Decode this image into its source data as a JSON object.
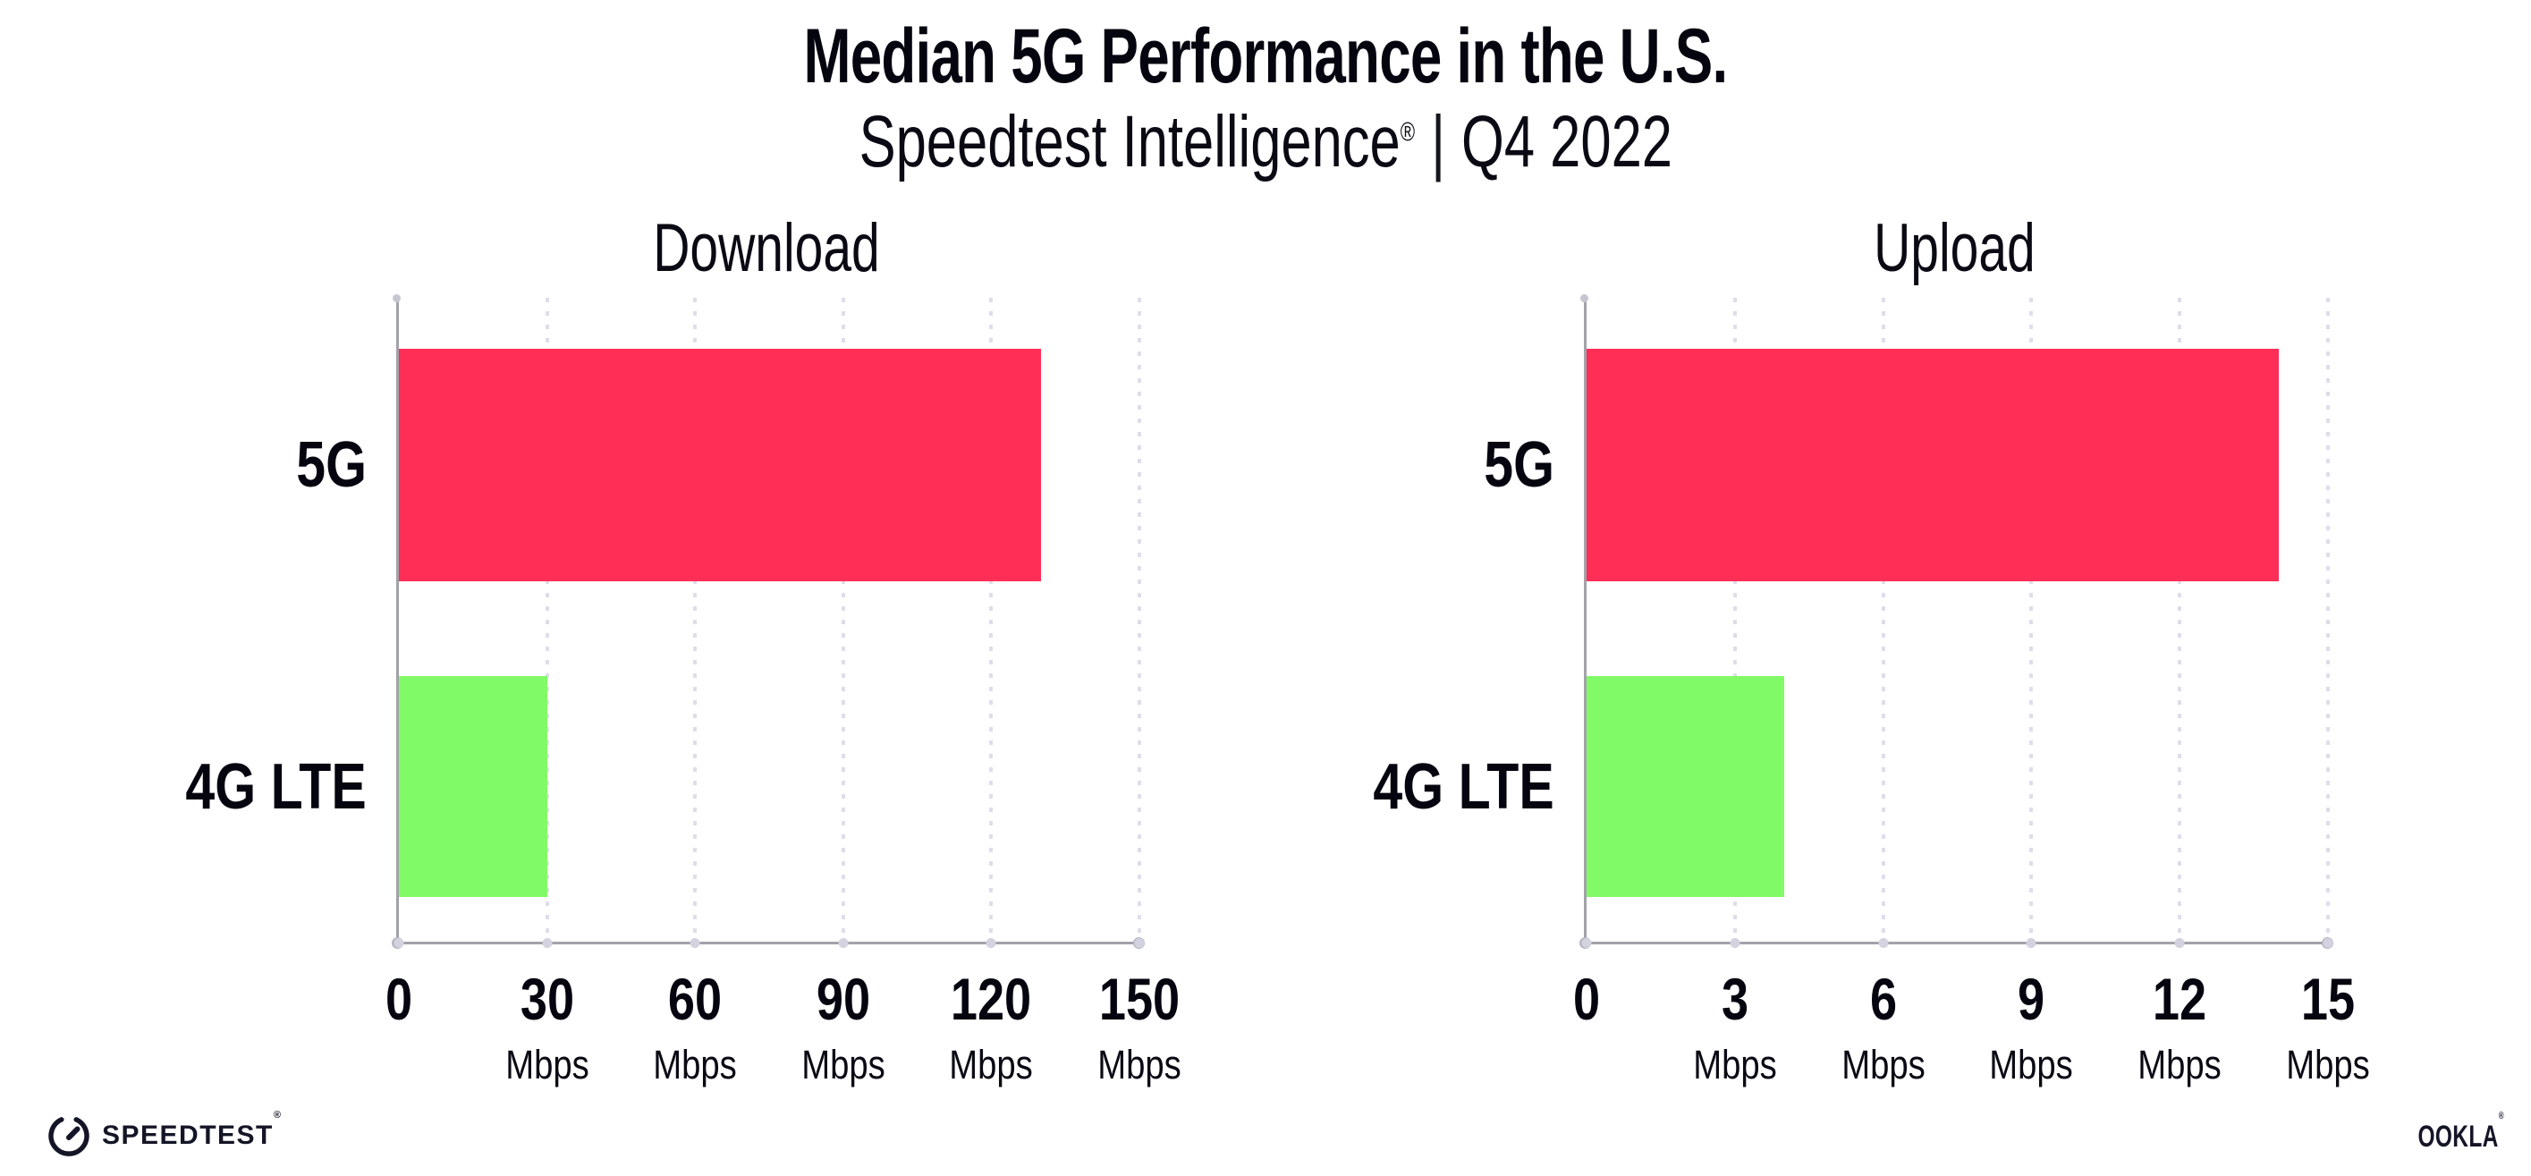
{
  "header": {
    "title": "Median 5G Performance in the U.S.",
    "subtitle": {
      "brand": "Speedtest Intelligence",
      "registered": "®",
      "separator": "|",
      "period": "Q4 2022"
    }
  },
  "chart_data": [
    {
      "type": "bar",
      "orientation": "horizontal",
      "title": "Download",
      "categories": [
        "5G",
        "4G LTE"
      ],
      "values": [
        130,
        30
      ],
      "unit": "Mbps",
      "xlim": [
        0,
        150
      ],
      "xticks": [
        0,
        30,
        60,
        90,
        120,
        150
      ],
      "grid": "vertical-dotted",
      "legend": "none",
      "series_colors": [
        "#ff2e57",
        "#80fa66"
      ]
    },
    {
      "type": "bar",
      "orientation": "horizontal",
      "title": "Upload",
      "categories": [
        "5G",
        "4G LTE"
      ],
      "values": [
        14,
        4
      ],
      "unit": "Mbps",
      "xlim": [
        0,
        15
      ],
      "xticks": [
        0,
        3,
        6,
        9,
        12,
        15
      ],
      "grid": "vertical-dotted",
      "legend": "none",
      "series_colors": [
        "#ff2e57",
        "#80fa66"
      ]
    }
  ],
  "footer": {
    "speedtest_logo_text": "SPEEDTEST",
    "speedtest_registered": "®",
    "ookla_logo_text": "OOKLA",
    "ookla_registered": "®"
  },
  "colors": {
    "bar_5g": "#ff2e57",
    "bar_4g_lte": "#80fa66",
    "gridline": "#dedeea",
    "axis": "#a2a2aa",
    "text": "#050510"
  }
}
